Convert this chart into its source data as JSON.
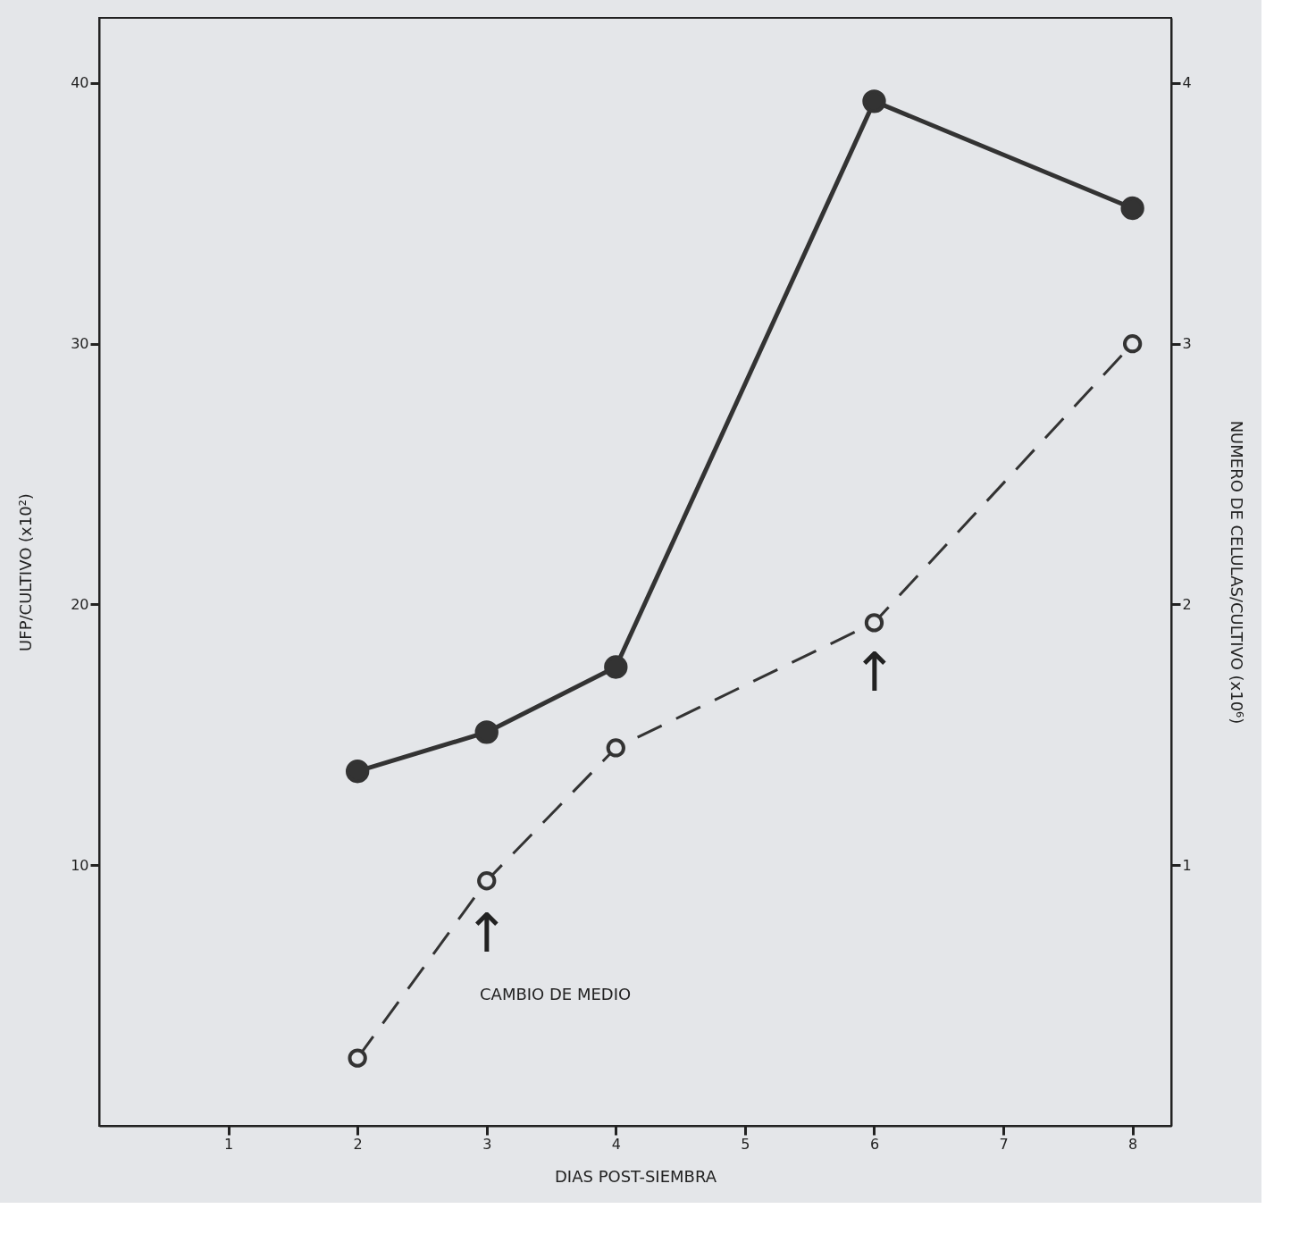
{
  "chart_data": {
    "type": "line",
    "xlabel": "DIAS POST-SIEMBRA",
    "ylabel": "UFP/CULTIVO (x10²)",
    "y2label": "NUMERO DE CELULAS/CULTIVO (x10⁶)",
    "xlim": [
      0,
      8.3
    ],
    "xticks": [
      1,
      2,
      3,
      4,
      5,
      6,
      7,
      8
    ],
    "ylim": [
      0,
      42.5
    ],
    "yticks": [
      10,
      20,
      30,
      40
    ],
    "y2lim": [
      0,
      4.25
    ],
    "y2ticks": [
      1,
      2,
      3,
      4
    ],
    "grid": false,
    "marker": "circle",
    "series": [
      {
        "color": "#333333",
        "line_style": "dashed",
        "x": [
          2,
          3,
          4,
          6,
          8
        ],
        "values": [
          2.6,
          9.4,
          14.5,
          19.3,
          30
        ]
      },
      {
        "color": "#333333",
        "line_style": "solid",
        "axis": "y2",
        "x": [
          2,
          3,
          4,
          6,
          8
        ],
        "values": [
          1.36,
          1.51,
          1.76,
          3.93,
          3.52
        ]
      }
    ],
    "annotations": [
      "CAMBIO DE MEDIO",
      "↑",
      "↑"
    ]
  }
}
